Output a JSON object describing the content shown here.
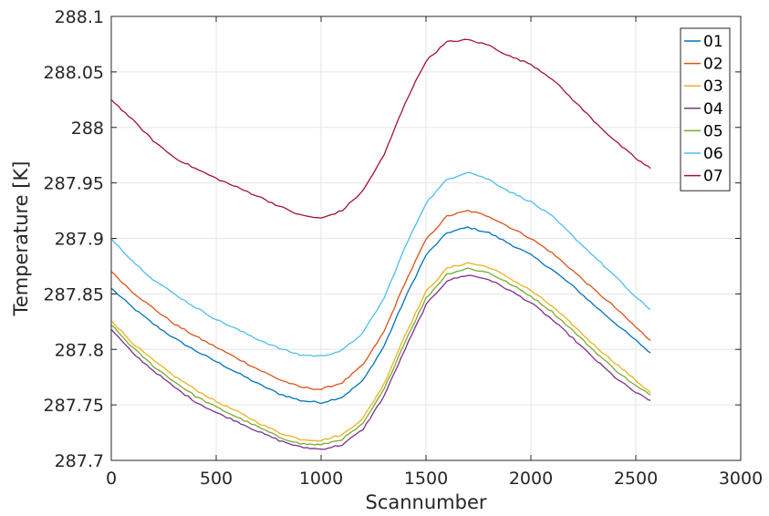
{
  "chart_data": {
    "type": "line",
    "xlabel": "Scannumber",
    "ylabel": "Temperature [K]",
    "xlim": [
      0,
      3000
    ],
    "ylim": [
      287.7,
      288.1
    ],
    "x_ticks": [
      "0",
      "500",
      "1000",
      "1500",
      "2000",
      "2500",
      "3000"
    ],
    "y_ticks": [
      "287.7",
      "287.75",
      "287.8",
      "287.85",
      "287.9",
      "287.95",
      "288",
      "288.05",
      "288.1"
    ],
    "grid": true,
    "legend_position": "top-right",
    "x": [
      0,
      100,
      200,
      300,
      400,
      500,
      600,
      700,
      800,
      900,
      1000,
      1100,
      1200,
      1300,
      1400,
      1500,
      1600,
      1700,
      1800,
      1900,
      2000,
      2100,
      2200,
      2300,
      2400,
      2500,
      2570
    ],
    "series": [
      {
        "name": "01",
        "color": "#0072BD",
        "values": [
          287.855,
          287.838,
          287.823,
          287.81,
          287.799,
          287.789,
          287.779,
          287.769,
          287.76,
          287.754,
          287.752,
          287.757,
          287.772,
          287.803,
          287.846,
          287.885,
          287.905,
          287.91,
          287.905,
          287.895,
          287.885,
          287.872,
          287.857,
          287.84,
          287.824,
          287.808,
          287.797
        ]
      },
      {
        "name": "02",
        "color": "#D95319",
        "values": [
          287.87,
          287.852,
          287.837,
          287.823,
          287.812,
          287.802,
          287.792,
          287.782,
          287.773,
          287.766,
          287.764,
          287.77,
          287.786,
          287.816,
          287.86,
          287.899,
          287.92,
          287.925,
          287.92,
          287.91,
          287.9,
          287.887,
          287.871,
          287.854,
          287.838,
          287.82,
          287.808
        ]
      },
      {
        "name": "03",
        "color": "#EDB120",
        "values": [
          287.826,
          287.806,
          287.79,
          287.776,
          287.764,
          287.753,
          287.744,
          287.734,
          287.725,
          287.719,
          287.718,
          287.723,
          287.738,
          287.769,
          287.813,
          287.852,
          287.873,
          287.878,
          287.874,
          287.864,
          287.853,
          287.839,
          287.822,
          287.804,
          287.788,
          287.772,
          287.761
        ]
      },
      {
        "name": "04",
        "color": "#7E2F8E",
        "values": [
          287.818,
          287.797,
          287.781,
          287.766,
          287.753,
          287.743,
          287.735,
          287.726,
          287.718,
          287.712,
          287.71,
          287.714,
          287.728,
          287.758,
          287.8,
          287.84,
          287.862,
          287.867,
          287.863,
          287.853,
          287.842,
          287.827,
          287.81,
          287.792,
          287.775,
          287.761,
          287.754
        ]
      },
      {
        "name": "05",
        "color": "#77AC30",
        "values": [
          287.822,
          287.802,
          287.785,
          287.771,
          287.758,
          287.748,
          287.739,
          287.73,
          287.721,
          287.715,
          287.714,
          287.719,
          287.733,
          287.764,
          287.807,
          287.846,
          287.868,
          287.873,
          287.869,
          287.859,
          287.848,
          287.834,
          287.817,
          287.799,
          287.782,
          287.767,
          287.759
        ]
      },
      {
        "name": "06",
        "color": "#4DBEEE",
        "values": [
          287.9,
          287.88,
          287.863,
          287.85,
          287.838,
          287.827,
          287.818,
          287.809,
          287.801,
          287.795,
          287.794,
          287.799,
          287.815,
          287.846,
          287.892,
          287.932,
          287.953,
          287.96,
          287.953,
          287.942,
          287.933,
          287.92,
          287.902,
          287.884,
          287.866,
          287.847,
          287.836
        ]
      },
      {
        "name": "07",
        "color": "#A2142F",
        "values": [
          288.025,
          288.007,
          287.988,
          287.973,
          287.963,
          287.954,
          287.946,
          287.938,
          287.929,
          287.921,
          287.918,
          287.925,
          287.943,
          287.975,
          288.022,
          288.06,
          288.077,
          288.079,
          288.074,
          288.064,
          288.057,
          288.044,
          288.025,
          288.006,
          287.988,
          287.972,
          287.963
        ]
      }
    ]
  }
}
